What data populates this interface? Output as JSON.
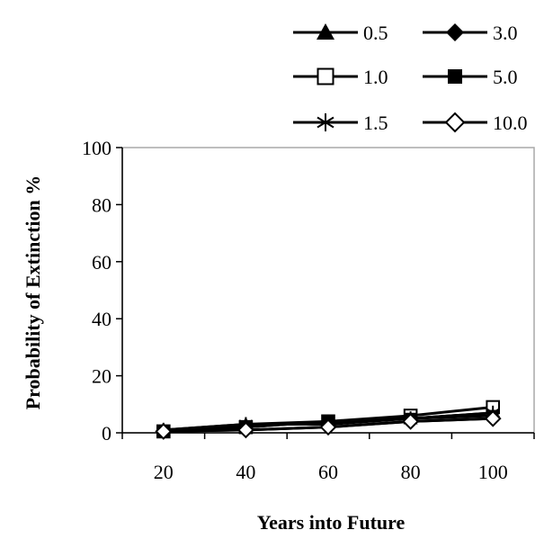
{
  "chart_data": {
    "type": "line",
    "xlabel": "Years into Future",
    "ylabel": "Probability of Extinction %",
    "x": [
      20,
      40,
      60,
      80,
      100
    ],
    "x_tick_labels": [
      "20",
      "40",
      "60",
      "80",
      "100"
    ],
    "y_tick_labels": [
      "0",
      "20",
      "40",
      "60",
      "80",
      "100"
    ],
    "ylim": [
      0,
      100
    ],
    "grid": false,
    "legend_position": "top-right",
    "series": [
      {
        "name": "0.5",
        "marker": "triangle-filled",
        "values": [
          1,
          3,
          4,
          5,
          7
        ]
      },
      {
        "name": "1.0",
        "marker": "square-open",
        "values": [
          0.5,
          2,
          4,
          6,
          9
        ]
      },
      {
        "name": "1.5",
        "marker": "asterisk",
        "values": [
          1,
          3,
          3,
          5,
          7
        ]
      },
      {
        "name": "3.0",
        "marker": "diamond-filled",
        "values": [
          0.5,
          1,
          2,
          4,
          5
        ]
      },
      {
        "name": "5.0",
        "marker": "square-filled",
        "values": [
          0.5,
          2,
          4,
          5,
          6
        ]
      },
      {
        "name": "10.0",
        "marker": "diamond-open",
        "values": [
          0.5,
          1,
          2,
          4,
          5
        ]
      }
    ],
    "colors": {
      "line": "#000000",
      "plot_border": "#000000"
    }
  }
}
